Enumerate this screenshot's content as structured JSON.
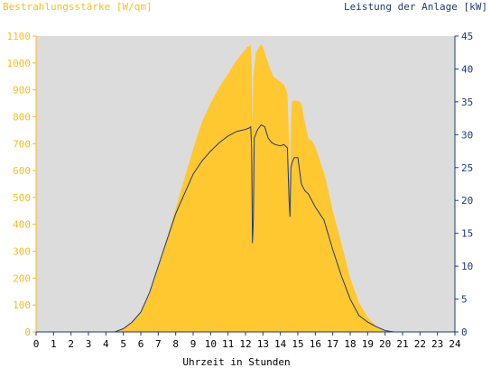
{
  "chart_data": {
    "type": "area",
    "y1_label": "Bestrahlungsstärke [W/qm]",
    "y2_label": "Leistung der Anlage [kW]",
    "xlabel": "Uhrzeit in Stunden",
    "xlim": [
      0,
      24
    ],
    "ylim": [
      0,
      1100
    ],
    "y2lim": [
      0,
      45
    ],
    "x_ticks": [
      0,
      1,
      2,
      3,
      4,
      5,
      6,
      7,
      8,
      9,
      10,
      11,
      12,
      13,
      14,
      15,
      16,
      17,
      18,
      19,
      20,
      21,
      22,
      23,
      24
    ],
    "y_ticks": [
      0,
      100,
      200,
      300,
      400,
      500,
      600,
      700,
      800,
      900,
      1000,
      1100
    ],
    "y2_ticks": [
      0,
      5,
      10,
      15,
      20,
      25,
      30,
      35,
      40,
      45
    ],
    "grid": false,
    "background": "#dcdcdc",
    "series": [
      {
        "name": "Bestrahlungsstärke [W/qm]",
        "axis": "left",
        "color": "#ffc830",
        "x": [
          0,
          4.5,
          5,
          5.5,
          6,
          6.5,
          7,
          7.5,
          8,
          8.5,
          9,
          9.5,
          10,
          10.5,
          11,
          11.5,
          12,
          12.1,
          12.2,
          12.3,
          12.35,
          12.4,
          12.45,
          12.6,
          12.8,
          12.9,
          13,
          13.2,
          13.4,
          13.6,
          13.8,
          14,
          14.2,
          14.4,
          14.5,
          14.55,
          14.6,
          14.65,
          14.7,
          14.8,
          15,
          15.2,
          15.4,
          15.6,
          15.8,
          16,
          16.3,
          16.6,
          17,
          17.5,
          18,
          18.5,
          19,
          19.5,
          20,
          20.5,
          21,
          24
        ],
        "values": [
          0,
          0,
          10,
          35,
          70,
          140,
          240,
          350,
          460,
          570,
          680,
          780,
          850,
          910,
          960,
          1010,
          1050,
          1060,
          1060,
          1070,
          1000,
          760,
          950,
          1040,
          1060,
          1070,
          1060,
          1020,
          980,
          950,
          940,
          930,
          920,
          890,
          700,
          560,
          760,
          850,
          860,
          860,
          860,
          850,
          780,
          720,
          710,
          690,
          630,
          570,
          450,
          330,
          200,
          110,
          55,
          20,
          5,
          0,
          0,
          0
        ]
      },
      {
        "name": "Leistung der Anlage [kW]",
        "axis": "right",
        "color": "#1e3a78",
        "x": [
          0,
          4.5,
          5,
          5.5,
          6,
          6.5,
          7,
          7.5,
          8,
          8.5,
          9,
          9.5,
          10,
          10.5,
          11,
          11.5,
          12,
          12.2,
          12.3,
          12.35,
          12.4,
          12.45,
          12.5,
          12.7,
          12.9,
          13.1,
          13.3,
          13.5,
          13.7,
          14,
          14.2,
          14.4,
          14.5,
          14.55,
          14.6,
          14.7,
          14.8,
          15,
          15.2,
          15.4,
          15.6,
          15.8,
          16,
          16.5,
          17,
          17.5,
          18,
          18.5,
          19,
          19.5,
          20,
          20.5,
          21,
          24
        ],
        "values": [
          0,
          0,
          0.5,
          1.5,
          3,
          6,
          10,
          14,
          18,
          21,
          24,
          26,
          27.5,
          28.8,
          29.8,
          30.5,
          30.8,
          31,
          31.2,
          28,
          13.5,
          17,
          29.5,
          30.8,
          31.5,
          31.2,
          29.5,
          28.8,
          28.5,
          28.3,
          28.5,
          28,
          20,
          17.5,
          25,
          26,
          26.5,
          26.5,
          22.5,
          21.5,
          21,
          20,
          19,
          17,
          12.5,
          8.5,
          5,
          2.5,
          1.5,
          0.8,
          0.2,
          0,
          0,
          0
        ]
      }
    ]
  }
}
